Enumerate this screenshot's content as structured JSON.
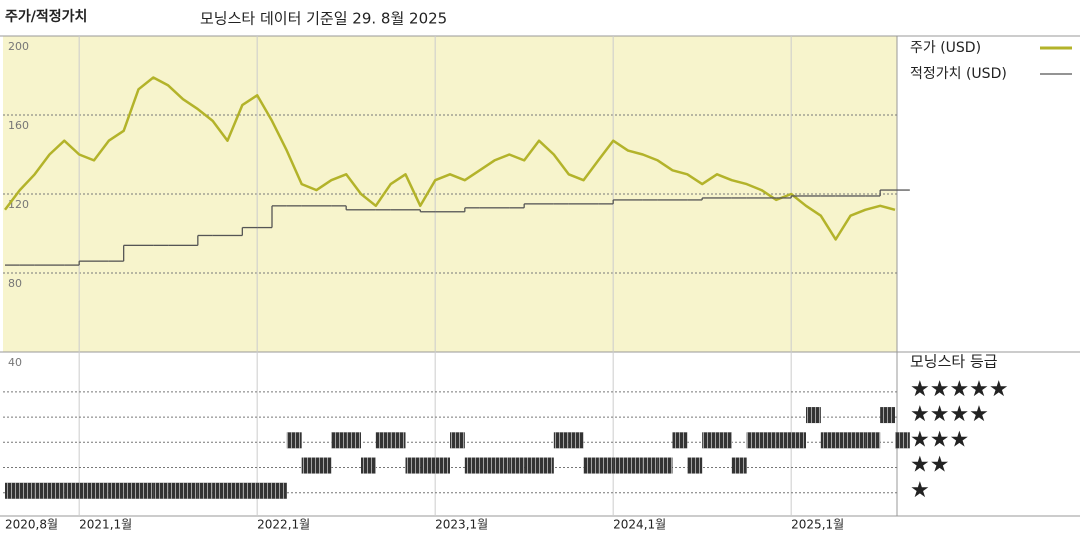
{
  "chart_data": [
    {
      "type": "line",
      "title": "주가/적정가치",
      "subtitle": "모닝스타 데이터 기준일 29. 8월 2025",
      "x": [
        "2020-08",
        "2020-09",
        "2020-10",
        "2020-11",
        "2020-12",
        "2021-01",
        "2021-02",
        "2021-03",
        "2021-04",
        "2021-05",
        "2021-06",
        "2021-07",
        "2021-08",
        "2021-09",
        "2021-10",
        "2021-11",
        "2021-12",
        "2022-01",
        "2022-02",
        "2022-03",
        "2022-04",
        "2022-05",
        "2022-06",
        "2022-07",
        "2022-08",
        "2022-09",
        "2022-10",
        "2022-11",
        "2022-12",
        "2023-01",
        "2023-02",
        "2023-03",
        "2023-04",
        "2023-05",
        "2023-06",
        "2023-07",
        "2023-08",
        "2023-09",
        "2023-10",
        "2023-11",
        "2023-12",
        "2024-01",
        "2024-02",
        "2024-03",
        "2024-04",
        "2024-05",
        "2024-06",
        "2024-07",
        "2024-08",
        "2024-09",
        "2024-10",
        "2024-11",
        "2024-12",
        "2025-01",
        "2025-02",
        "2025-03",
        "2025-04",
        "2025-05",
        "2025-06",
        "2025-07",
        "2025-08"
      ],
      "series": [
        {
          "name": "주가 (USD)",
          "color": "#b3b32a",
          "values": [
            112,
            122,
            130,
            140,
            147,
            140,
            137,
            147,
            152,
            173,
            179,
            175,
            168,
            163,
            157,
            147,
            165,
            170,
            157,
            142,
            125,
            122,
            127,
            130,
            120,
            114,
            125,
            130,
            114,
            127,
            130,
            127,
            132,
            137,
            140,
            137,
            147,
            140,
            130,
            127,
            137,
            147,
            142,
            140,
            137,
            132,
            130,
            125,
            130,
            127,
            125,
            122,
            117,
            120,
            114,
            109,
            97,
            109,
            112,
            114,
            112
          ]
        },
        {
          "name": "적정가치 (USD)",
          "color": "#555555",
          "step": true,
          "values": [
            84,
            84,
            84,
            84,
            84,
            86,
            86,
            86,
            94,
            94,
            94,
            94,
            94,
            99,
            99,
            99,
            103,
            103,
            114,
            114,
            114,
            114,
            114,
            112,
            112,
            112,
            112,
            112,
            111,
            111,
            111,
            113,
            113,
            113,
            113,
            115,
            115,
            115,
            115,
            115,
            115,
            117,
            117,
            117,
            117,
            117,
            117,
            118,
            118,
            118,
            118,
            118,
            118,
            119,
            119,
            119,
            119,
            119,
            119,
            122,
            122
          ]
        }
      ],
      "xlim": [
        "2020-08",
        "2025-08"
      ],
      "xticks": [
        {
          "value": "2020-08",
          "label": "2020,8월"
        },
        {
          "value": "2021-01",
          "label": "2021,1월"
        },
        {
          "value": "2022-01",
          "label": "2022,1월"
        },
        {
          "value": "2023-01",
          "label": "2023,1월"
        },
        {
          "value": "2024-01",
          "label": "2024,1월"
        },
        {
          "value": "2025-01",
          "label": "2025,1월"
        }
      ],
      "ylim": [
        40,
        200
      ],
      "yticks": [
        40,
        80,
        120,
        160,
        200
      ],
      "grid": true
    },
    {
      "type": "rating",
      "title": "모닝스타 등급",
      "categories": [
        "★",
        "★★",
        "★★★",
        "★★★★",
        "★★★★★"
      ],
      "x": [
        "2020-08",
        "2020-09",
        "2020-10",
        "2020-11",
        "2020-12",
        "2021-01",
        "2021-02",
        "2021-03",
        "2021-04",
        "2021-05",
        "2021-06",
        "2021-07",
        "2021-08",
        "2021-09",
        "2021-10",
        "2021-11",
        "2021-12",
        "2022-01",
        "2022-02",
        "2022-03",
        "2022-04",
        "2022-05",
        "2022-06",
        "2022-07",
        "2022-08",
        "2022-09",
        "2022-10",
        "2022-11",
        "2022-12",
        "2023-01",
        "2023-02",
        "2023-03",
        "2023-04",
        "2023-05",
        "2023-06",
        "2023-07",
        "2023-08",
        "2023-09",
        "2023-10",
        "2023-11",
        "2023-12",
        "2024-01",
        "2024-02",
        "2024-03",
        "2024-04",
        "2024-05",
        "2024-06",
        "2024-07",
        "2024-08",
        "2024-09",
        "2024-10",
        "2024-11",
        "2024-12",
        "2025-01",
        "2025-02",
        "2025-03",
        "2025-04",
        "2025-05",
        "2025-06",
        "2025-07",
        "2025-08"
      ],
      "values": [
        1,
        1,
        1,
        1,
        1,
        1,
        1,
        1,
        1,
        1,
        1,
        1,
        1,
        1,
        1,
        1,
        1,
        1,
        1,
        3,
        2,
        2,
        3,
        3,
        2,
        3,
        3,
        2,
        2,
        2,
        3,
        2,
        2,
        2,
        2,
        2,
        2,
        3,
        3,
        2,
        2,
        2,
        2,
        2,
        2,
        3,
        2,
        3,
        3,
        2,
        3,
        3,
        3,
        3,
        4,
        3,
        3,
        3,
        3,
        4,
        3
      ],
      "color": "#333333",
      "ylim": [
        0,
        6.5
      ]
    }
  ]
}
